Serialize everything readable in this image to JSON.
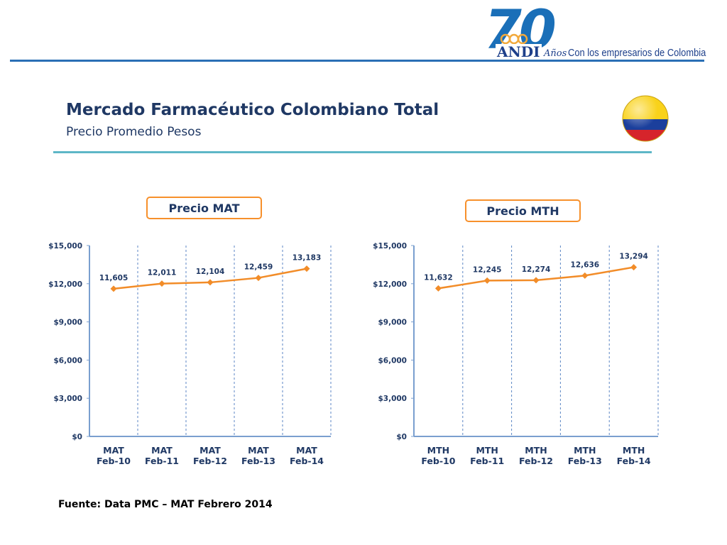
{
  "header": {
    "logo_number": "70",
    "logo_name": "ANDI",
    "logo_anos": "Años",
    "tagline": "Con los empresarios de Colombia"
  },
  "slide": {
    "title": "Mercado Farmacéutico Colombiano Total",
    "subtitle": "Precio Promedio Pesos"
  },
  "colors": {
    "line": "#f28c28",
    "title": "#1f3864",
    "accent_rule": "#5eb7c7",
    "grid": "#5b86c4"
  },
  "chart_data": [
    {
      "type": "line",
      "title": "Precio MAT",
      "categories": [
        [
          "MAT",
          "Feb-10"
        ],
        [
          "MAT",
          "Feb-11"
        ],
        [
          "MAT",
          "Feb-12"
        ],
        [
          "MAT",
          "Feb-13"
        ],
        [
          "MAT",
          "Feb-14"
        ]
      ],
      "values": [
        11605,
        12011,
        12104,
        12459,
        13183
      ],
      "value_labels": [
        "11,605",
        "12,011",
        "12,104",
        "12,459",
        "13,183"
      ],
      "yticks": [
        "$0",
        "$3,000",
        "$6,000",
        "$9,000",
        "$12,000",
        "$15,000"
      ],
      "ylim": [
        0,
        15000
      ],
      "xlabel": "",
      "ylabel": "",
      "grid": "vertical-dashed"
    },
    {
      "type": "line",
      "title": "Precio MTH",
      "categories": [
        [
          "MTH",
          "Feb-10"
        ],
        [
          "MTH",
          "Feb-11"
        ],
        [
          "MTH",
          "Feb-12"
        ],
        [
          "MTH",
          "Feb-13"
        ],
        [
          "MTH",
          "Feb-14"
        ]
      ],
      "values": [
        11632,
        12245,
        12274,
        12636,
        13294
      ],
      "value_labels": [
        "11,632",
        "12,245",
        "12,274",
        "12,636",
        "13,294"
      ],
      "yticks": [
        "$0",
        "$3,000",
        "$6,000",
        "$9,000",
        "$12,000",
        "$15,000"
      ],
      "ylim": [
        0,
        15000
      ],
      "xlabel": "",
      "ylabel": "",
      "grid": "vertical-dashed"
    }
  ],
  "footer": {
    "source": "Fuente: Data PMC – MAT Febrero 2014"
  }
}
